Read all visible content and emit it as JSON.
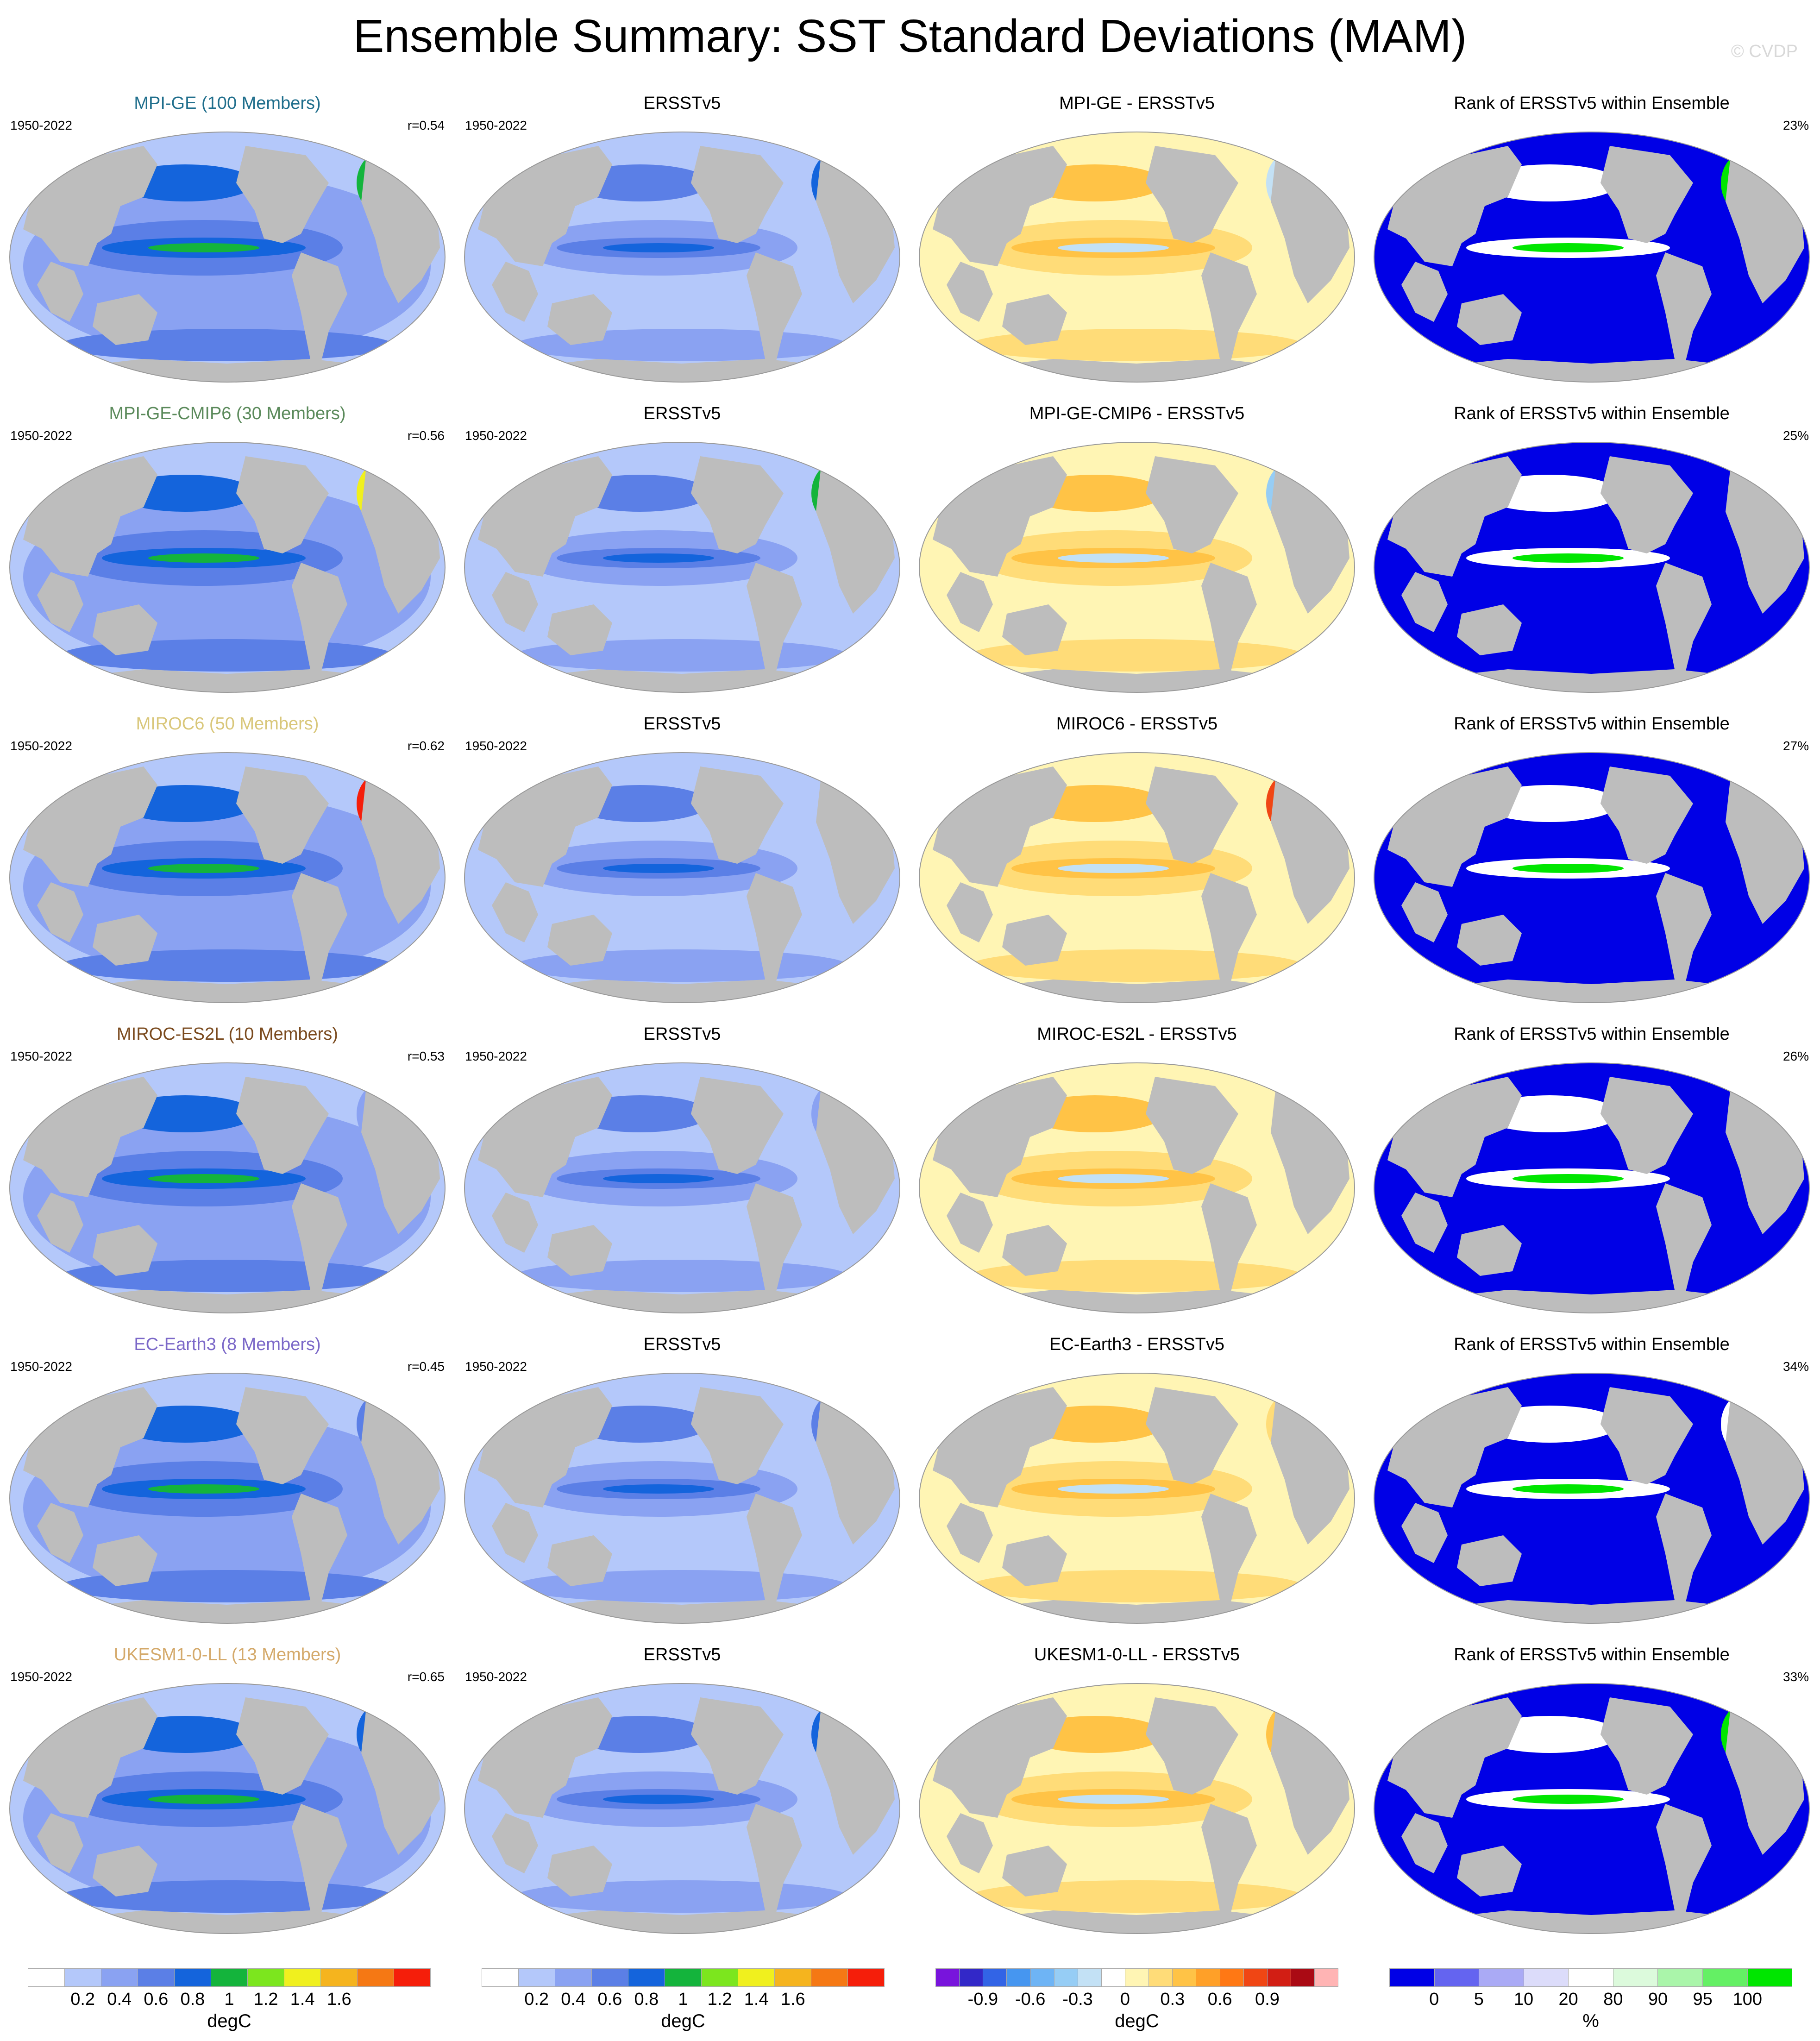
{
  "figure": {
    "title": "Ensemble Summary: SST Standard Deviations (MAM)",
    "watermark": "© CVDP"
  },
  "rows": [
    {
      "model_title": "MPI-GE (100 Members)",
      "title_color": "#1f6e8c",
      "years": "1950-2022",
      "r": "r=0.54",
      "obs_title": "ERSSTv5",
      "obs_years": "1950-2022",
      "diff_title": "MPI-GE - ERSSTv5",
      "rank_title": "Rank of ERSSTv5 within Ensemble",
      "rank_pct": "23%"
    },
    {
      "model_title": "MPI-GE-CMIP6 (30 Members)",
      "title_color": "#5b8a5b",
      "years": "1950-2022",
      "r": "r=0.56",
      "obs_title": "ERSSTv5",
      "obs_years": "1950-2022",
      "diff_title": "MPI-GE-CMIP6 - ERSSTv5",
      "rank_title": "Rank of ERSSTv5 within Ensemble",
      "rank_pct": "25%"
    },
    {
      "model_title": "MIROC6 (50 Members)",
      "title_color": "#d9c77a",
      "years": "1950-2022",
      "r": "r=0.62",
      "obs_title": "ERSSTv5",
      "obs_years": "1950-2022",
      "diff_title": "MIROC6 - ERSSTv5",
      "rank_title": "Rank of ERSSTv5 within Ensemble",
      "rank_pct": "27%"
    },
    {
      "model_title": "MIROC-ES2L (10 Members)",
      "title_color": "#7a4a1e",
      "years": "1950-2022",
      "r": "r=0.53",
      "obs_title": "ERSSTv5",
      "obs_years": "1950-2022",
      "diff_title": "MIROC-ES2L - ERSSTv5",
      "rank_title": "Rank of ERSSTv5 within Ensemble",
      "rank_pct": "26%"
    },
    {
      "model_title": "EC-Earth3 (8 Members)",
      "title_color": "#7b68c8",
      "years": "1950-2022",
      "r": "r=0.45",
      "obs_title": "ERSSTv5",
      "obs_years": "1950-2022",
      "diff_title": "EC-Earth3 - ERSSTv5",
      "rank_title": "Rank of ERSSTv5 within Ensemble",
      "rank_pct": "34%"
    },
    {
      "model_title": "UKESM1-0-LL (13 Members)",
      "title_color": "#d4a96a",
      "years": "1950-2022",
      "r": "r=0.65",
      "obs_title": "ERSSTv5",
      "obs_years": "1950-2022",
      "diff_title": "UKESM1-0-LL - ERSSTv5",
      "rank_title": "Rank of ERSSTv5 within Ensemble",
      "rank_pct": "33%"
    }
  ],
  "colorbars": [
    {
      "unit": "degC",
      "colors": [
        "#ffffff",
        "#b4c8fa",
        "#8aa2f2",
        "#5b7fe6",
        "#1464dc",
        "#14b43c",
        "#7ce61e",
        "#f0f01e",
        "#f5b41e",
        "#f57814",
        "#f51e0a"
      ],
      "ticks": [
        "0.2",
        "0.4",
        "0.6",
        "0.8",
        "1",
        "1.2",
        "1.4",
        "1.6"
      ]
    },
    {
      "unit": "degC",
      "colors": [
        "#ffffff",
        "#b4c8fa",
        "#8aa2f2",
        "#5b7fe6",
        "#1464dc",
        "#14b43c",
        "#7ce61e",
        "#f0f01e",
        "#f5b41e",
        "#f57814",
        "#f51e0a"
      ],
      "ticks": [
        "0.2",
        "0.4",
        "0.6",
        "0.8",
        "1",
        "1.2",
        "1.4",
        "1.6"
      ]
    },
    {
      "unit": "degC",
      "colors": [
        "#7814dc",
        "#3228c8",
        "#3264e6",
        "#4696f0",
        "#6eb4f5",
        "#96cdf5",
        "#c3e1f5",
        "#ffffff",
        "#fff5b4",
        "#ffdc78",
        "#ffc346",
        "#ffa028",
        "#ff7814",
        "#f04614",
        "#d21e14",
        "#aa0a14",
        "#ffb4b4"
      ],
      "ticks": [
        "-0.9",
        "-0.6",
        "-0.3",
        "0",
        "0.3",
        "0.6",
        "0.9"
      ]
    },
    {
      "unit": "%",
      "colors": [
        "#0000e6",
        "#6464f0",
        "#aaaaf5",
        "#dcdcfa",
        "#ffffff",
        "#dcfadc",
        "#aaf5aa",
        "#64f064",
        "#00e600"
      ],
      "ticks": [
        "0",
        "5",
        "10",
        "20",
        "80",
        "90",
        "95",
        "100"
      ]
    }
  ]
}
